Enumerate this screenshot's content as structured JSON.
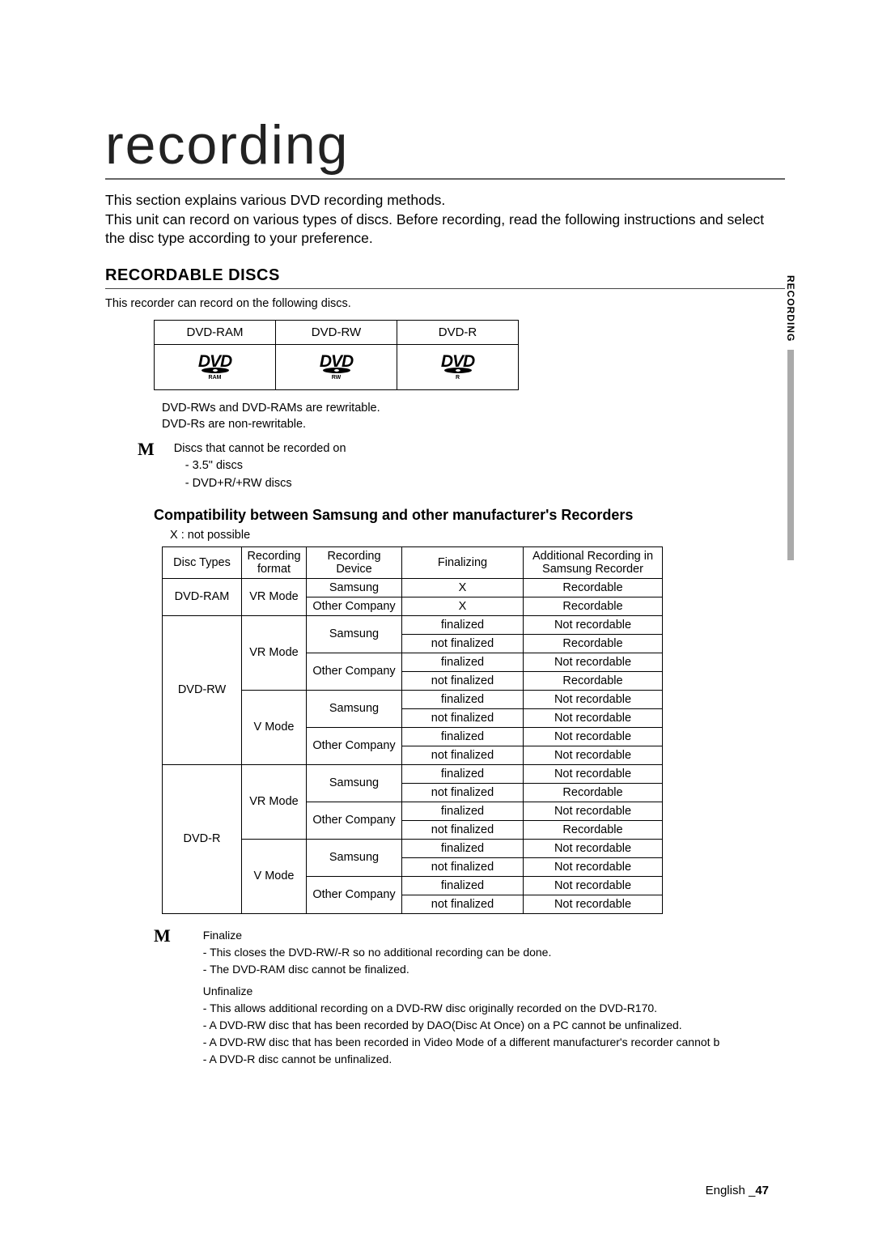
{
  "title": "recording",
  "intro": "This section explains various DVD recording methods.\nThis unit can record on various types of discs. Before recording, read the following instructions and select the disc type according to your preference.",
  "sideTab": "RECORDING",
  "recordableDiscs": {
    "heading": "RECORDABLE DISCS",
    "note": "This recorder can record on the following discs.",
    "headers": [
      "DVD-RAM",
      "DVD-RW",
      "DVD-R"
    ],
    "logoSubs": [
      "RAM",
      "RW",
      "R"
    ],
    "rewritableNote": "DVD-RWs and DVD-RAMs are rewritable.\nDVD-Rs are non-rewritable.",
    "mNote": {
      "title": "Discs that cannot be recorded on",
      "items": [
        "- 3.5\" discs",
        "- DVD+R/+RW discs"
      ]
    }
  },
  "compat": {
    "heading": "Compatibility between Samsung and other manufacturer's Recorders",
    "legend": "X : not possible",
    "headers": {
      "discTypes": "Disc Types",
      "recFormat": "Recording format",
      "recDevice": "Recording Device",
      "finalizing": "Finalizing",
      "additional": "Additional Recording in Samsung Recorder"
    },
    "rows": [
      {
        "disc": "DVD-RAM",
        "mode": "VR Mode",
        "dev": "Samsung",
        "fin": "X",
        "add": "Recordable"
      },
      {
        "dev": "Other Company",
        "fin": "X",
        "add": "Recordable"
      },
      {
        "disc": "DVD-RW",
        "mode": "VR Mode",
        "dev": "Samsung",
        "fin": "ﬁnalized",
        "add": "Not recordable"
      },
      {
        "fin": "not ﬁnalized",
        "add": "Recordable"
      },
      {
        "dev": "Other Company",
        "fin": "ﬁnalized",
        "add": "Not recordable"
      },
      {
        "fin": "not ﬁnalized",
        "add": "Recordable"
      },
      {
        "mode": "V Mode",
        "dev": "Samsung",
        "fin": "ﬁnalized",
        "add": "Not recordable"
      },
      {
        "fin": "not ﬁnalized",
        "add": "Not recordable"
      },
      {
        "dev": "Other Company",
        "fin": "ﬁnalized",
        "add": "Not recordable"
      },
      {
        "fin": "not ﬁnalized",
        "add": "Not recordable"
      },
      {
        "disc": "DVD-R",
        "mode": "VR Mode",
        "dev": "Samsung",
        "fin": "ﬁnalized",
        "add": "Not recordable"
      },
      {
        "fin": "not ﬁnalized",
        "add": "Recordable"
      },
      {
        "dev": "Other Company",
        "fin": "ﬁnalized",
        "add": "Not recordable"
      },
      {
        "fin": "not ﬁnalized",
        "add": "Recordable"
      },
      {
        "mode": "V Mode",
        "dev": "Samsung",
        "fin": "ﬁnalized",
        "add": "Not recordable"
      },
      {
        "fin": "not ﬁnalized",
        "add": "Not recordable"
      },
      {
        "dev": "Other Company",
        "fin": "ﬁnalized",
        "add": "Not recordable"
      },
      {
        "fin": "not ﬁnalized",
        "add": "Not recordable"
      }
    ]
  },
  "mNote2": {
    "finalize": {
      "title": "Finalize",
      "lines": [
        "- This closes the DVD-RW/-R so no additional recording can be done.",
        "- The DVD-RAM disc cannot be ﬁnalized."
      ]
    },
    "unfinalize": {
      "title": "Unﬁnalize",
      "lines": [
        "- This allows additional recording on a DVD-RW disc originally recorded on the DVD-R170.",
        "- A DVD-RW disc that has been recorded by DAO(Disc At Once) on a PC cannot be unﬁnalized.",
        "- A DVD-RW disc that has been recorded in Video Mode of a different manufacturer's recorder cannot b",
        "- A DVD-R disc cannot be unﬁnalized."
      ]
    }
  },
  "footer": {
    "lang": "English",
    "sep": "_",
    "page": "47"
  }
}
